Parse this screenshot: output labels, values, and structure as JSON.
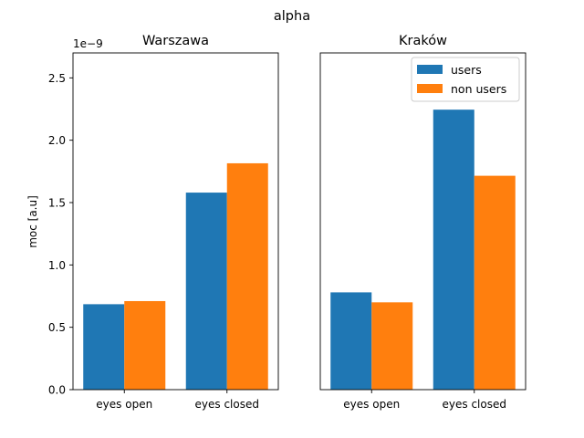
{
  "figure": {
    "suptitle": "alpha",
    "ylabel": "moc [a.u]",
    "offset_text": "1e−9"
  },
  "chart_data": [
    {
      "type": "bar",
      "title": "Warszawa",
      "categories": [
        "eyes open",
        "eyes closed"
      ],
      "series": [
        {
          "name": "users",
          "values": [
            0.685,
            1.58
          ]
        },
        {
          "name": "non users",
          "values": [
            0.71,
            1.815
          ]
        }
      ],
      "ylim": [
        0,
        2.7
      ],
      "yticks": [
        0.0,
        0.5,
        1.0,
        1.5,
        2.0,
        2.5
      ],
      "ytick_labels": [
        "0.0",
        "0.5",
        "1.0",
        "1.5",
        "2.0",
        "2.5"
      ],
      "y_scale_multiplier": "1e-9",
      "legend": false
    },
    {
      "type": "bar",
      "title": "Kraków",
      "categories": [
        "eyes open",
        "eyes closed"
      ],
      "series": [
        {
          "name": "users",
          "values": [
            0.78,
            2.245
          ]
        },
        {
          "name": "non users",
          "values": [
            0.7,
            1.715
          ]
        }
      ],
      "ylim": [
        0,
        2.7
      ],
      "legend": "upper right"
    }
  ],
  "colors": {
    "users": "#1f77b4",
    "non users": "#ff7f0e"
  }
}
